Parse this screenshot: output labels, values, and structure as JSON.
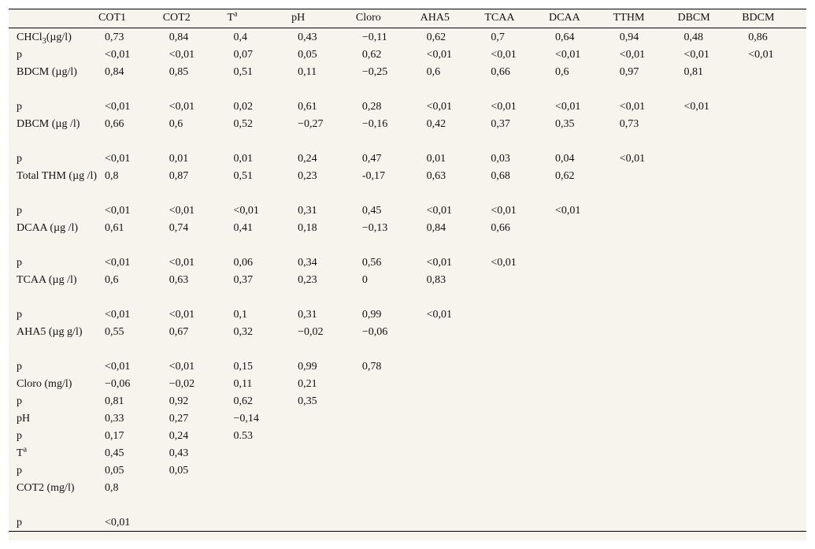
{
  "table": {
    "headers": [
      "",
      "COT1",
      "COT2",
      "Tª",
      "pH",
      "Cloro",
      "AHA5",
      "TCAA",
      "DCAA",
      "TTHM",
      "DBCM",
      "BDCM"
    ],
    "rows": [
      {
        "label": "CHCl3(µg/l)",
        "cells": [
          "0,73",
          "0,84",
          "0,4",
          "0,43",
          "−0,11",
          "0,62",
          "0,7",
          "0,64",
          "0,94",
          "0,48",
          "0,86"
        ]
      },
      {
        "label": "p",
        "cells": [
          "<0,01",
          "<0,01",
          "0,07",
          "0,05",
          "0,62",
          "<0,01",
          "<0,01",
          "<0,01",
          "<0,01",
          "<0,01",
          "<0,01"
        ]
      },
      {
        "label": "BDCM (µg/l)",
        "cells": [
          "0,84",
          "0,85",
          "0,51",
          "0,11",
          "−0,25",
          "0,6",
          "0,66",
          "0,6",
          "0,97",
          "0,81",
          ""
        ]
      },
      {
        "label": "p",
        "cells": [
          "<0,01",
          "<0,01",
          "0,02",
          "0,61",
          "0,28",
          "<0,01",
          "<0,01",
          "<0,01",
          "<0,01",
          "<0,01",
          ""
        ]
      },
      {
        "label": "DBCM (µg /l)",
        "cells": [
          "0,66",
          "0,6",
          "0,52",
          "−0,27",
          "−0,16",
          "0,42",
          "0,37",
          "0,35",
          "0,73",
          "",
          ""
        ]
      },
      {
        "label": "p",
        "cells": [
          "<0,01",
          "0,01",
          "0,01",
          "0,24",
          "0,47",
          "0,01",
          "0,03",
          "0,04",
          "<0,01",
          "",
          ""
        ]
      },
      {
        "label": "Total THM (µg /l)",
        "cells": [
          "0,8",
          "0,87",
          "0,51",
          "0,23",
          "-0,17",
          "0,63",
          "0,68",
          "0,62",
          "",
          "",
          ""
        ]
      },
      {
        "label": "p",
        "cells": [
          "<0,01",
          "<0,01",
          "<0,01",
          "0,31",
          "0,45",
          "<0,01",
          "<0,01",
          "<0,01",
          "",
          "",
          ""
        ]
      },
      {
        "label": "DCAA (µg /l)",
        "cells": [
          "0,61",
          "0,74",
          "0,41",
          "0,18",
          "−0,13",
          "0,84",
          "0,66",
          "",
          "",
          "",
          ""
        ]
      },
      {
        "label": "p",
        "cells": [
          "<0,01",
          "<0,01",
          "0,06",
          "0,34",
          "0,56",
          "<0,01",
          "<0,01",
          "",
          "",
          "",
          ""
        ]
      },
      {
        "label": "TCAA (µg /l)",
        "cells": [
          "0,6",
          "0,63",
          "0,37",
          "0,23",
          "0",
          "0,83",
          "",
          "",
          "",
          "",
          ""
        ]
      },
      {
        "label": "p",
        "cells": [
          "<0,01",
          "<0,01",
          "0,1",
          "0,31",
          "0,99",
          "<0,01",
          "",
          "",
          "",
          "",
          ""
        ]
      },
      {
        "label": "AHA5 (µg g/l)",
        "cells": [
          "0,55",
          "0,67",
          "0,32",
          "−0,02",
          "−0,06",
          "",
          "",
          "",
          "",
          "",
          ""
        ]
      },
      {
        "label": "p",
        "cells": [
          "<0,01",
          "<0,01",
          "0,15",
          "0,99",
          "0,78",
          "",
          "",
          "",
          "",
          "",
          ""
        ]
      },
      {
        "label": "Cloro (mg/l)",
        "cells": [
          "−0,06",
          "−0,02",
          "0,11",
          "0,21",
          "",
          "",
          "",
          "",
          "",
          "",
          ""
        ]
      },
      {
        "label": "p",
        "cells": [
          "0,81",
          "0,92",
          "0,62",
          "0,35",
          "",
          "",
          "",
          "",
          "",
          "",
          ""
        ]
      },
      {
        "label": "pH",
        "cells": [
          "0,33",
          "0,27",
          "−0,14",
          "",
          "",
          "",
          "",
          "",
          "",
          "",
          ""
        ]
      },
      {
        "label": "p",
        "cells": [
          "0,17",
          "0,24",
          "0.53",
          "",
          "",
          "",
          "",
          "",
          "",
          "",
          ""
        ]
      },
      {
        "label": "Tª",
        "cells": [
          "0,45",
          "0,43",
          "",
          "",
          "",
          "",
          "",
          "",
          "",
          "",
          ""
        ]
      },
      {
        "label": "p",
        "cells": [
          "0,05",
          "0,05",
          "",
          "",
          "",
          "",
          "",
          "",
          "",
          "",
          ""
        ]
      },
      {
        "label": "COT2 (mg/l)",
        "cells": [
          "0,8",
          "",
          "",
          "",
          "",
          "",
          "",
          "",
          "",
          "",
          ""
        ]
      },
      {
        "label": "p",
        "cells": [
          "<0,01",
          "",
          "",
          "",
          "",
          "",
          "",
          "",
          "",
          "",
          ""
        ]
      }
    ]
  }
}
